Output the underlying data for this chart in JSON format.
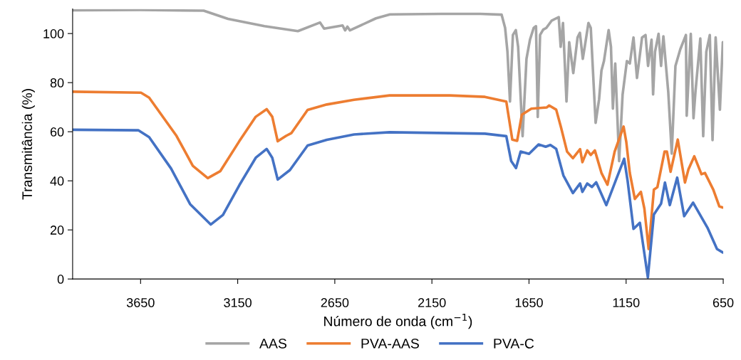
{
  "chart_data": {
    "type": "line",
    "xlabel": "Número de onda (cm$^{−1}$)",
    "ylabel": "Transmitância (%)",
    "xlim": [
      4000,
      650
    ],
    "xticks": [
      3650,
      3150,
      2650,
      2150,
      1650,
      1150,
      650
    ],
    "ylim": [
      0,
      110
    ],
    "yticks": [
      0,
      20,
      40,
      60,
      80,
      100
    ],
    "grid": false,
    "legend": "bottom",
    "marker": "none",
    "line_style": "solid",
    "series": [
      {
        "name": "AAS",
        "color": "#a5a5a5",
        "x": [
          4000,
          3650,
          3325,
          3200,
          3012,
          2840,
          2726,
          2705,
          2610,
          2597,
          2585,
          2572,
          2438,
          2366,
          2100,
          1900,
          1791,
          1773,
          1761,
          1748,
          1733,
          1718,
          1706,
          1683,
          1663,
          1645,
          1626,
          1614,
          1605,
          1593,
          1577,
          1561,
          1534,
          1510,
          1497,
          1487,
          1475,
          1457,
          1443,
          1422,
          1400,
          1388,
          1373,
          1363,
          1344,
          1332,
          1307,
          1289,
          1277,
          1264,
          1240,
          1228,
          1218,
          1206,
          1186,
          1168,
          1146,
          1131,
          1112,
          1094,
          1068,
          1050,
          1037,
          1019,
          1011,
          1001,
          983,
          970,
          958,
          933,
          915,
          896,
          871,
          842,
          838,
          817,
          803,
          793,
          768,
          753,
          737,
          719,
          705,
          689,
          667,
          652
        ],
        "values": [
          109.5,
          109.6,
          109.3,
          106,
          103,
          101,
          104.5,
          102,
          103.3,
          101.3,
          102.8,
          101.3,
          106.2,
          107.8,
          108,
          108,
          107.7,
          102.3,
          92.6,
          72.3,
          99.4,
          101.4,
          94.6,
          58.2,
          89.7,
          97.5,
          102.3,
          103,
          66,
          99.4,
          101.6,
          102.3,
          105.2,
          106.2,
          106.7,
          94.6,
          104.3,
          72.3,
          96.5,
          83.9,
          98.4,
          100.3,
          89.7,
          94.6,
          104.3,
          102.3,
          63.6,
          73.3,
          84.9,
          88.8,
          101.4,
          94.6,
          69.4,
          87.8,
          48,
          75.2,
          88.8,
          87.8,
          98.4,
          81.9,
          98.4,
          99.4,
          86.8,
          97.5,
          75.2,
          92.6,
          99.9,
          86.8,
          98.9,
          76.2,
          51.1,
          86.8,
          93.6,
          99.4,
          66.5,
          99.9,
          65.5,
          76.2,
          98,
          58.2,
          92.6,
          99.4,
          56.6,
          98.4,
          69,
          96.5
        ]
      },
      {
        "name": "PVA-AAS",
        "color": "#ed7d31",
        "x": [
          4000,
          3648,
          3606,
          3465,
          3381,
          3304,
          3240,
          3142,
          3057,
          3001,
          2972,
          2944,
          2901,
          2874,
          2790,
          2691,
          2551,
          2368,
          2058,
          1877,
          1767,
          1736,
          1711,
          1687,
          1638,
          1558,
          1546,
          1510,
          1485,
          1454,
          1424,
          1387,
          1375,
          1350,
          1332,
          1311,
          1277,
          1246,
          1209,
          1163,
          1149,
          1131,
          1105,
          1074,
          1056,
          1034,
          1007,
          989,
          952,
          940,
          921,
          884,
          847,
          829,
          799,
          762,
          744,
          701,
          670,
          652
        ],
        "values": [
          76.3,
          75.9,
          73.9,
          58.3,
          46.1,
          41.1,
          43.9,
          56.1,
          66.1,
          69.2,
          66.1,
          56.1,
          58.3,
          59.4,
          68.9,
          71.1,
          73,
          74.8,
          74.8,
          74.2,
          72.3,
          56.8,
          56.3,
          66.9,
          69.4,
          69.9,
          70.7,
          69,
          61.7,
          51.9,
          49.2,
          52.9,
          47.6,
          52.4,
          50.5,
          52.4,
          43.2,
          38.4,
          51.9,
          62.1,
          55.8,
          43.2,
          32.6,
          35.5,
          28.7,
          12.2,
          36.4,
          37.4,
          51.9,
          51.9,
          43.7,
          56.8,
          39.3,
          44.7,
          50,
          42.7,
          43.2,
          36.4,
          29.6,
          29.1
        ]
      },
      {
        "name": "PVA-C",
        "color": "#4472c4",
        "x": [
          4000,
          3662,
          3606,
          3493,
          3395,
          3289,
          3226,
          3141,
          3057,
          3001,
          2972,
          2944,
          2881,
          2790,
          2691,
          2551,
          2368,
          1877,
          1767,
          1742,
          1717,
          1693,
          1650,
          1601,
          1564,
          1540,
          1510,
          1473,
          1424,
          1387,
          1375,
          1350,
          1326,
          1304,
          1252,
          1203,
          1160,
          1142,
          1112,
          1079,
          1038,
          1007,
          970,
          950,
          925,
          887,
          851,
          805,
          731,
          682,
          652
        ],
        "values": [
          60.8,
          60.6,
          57.8,
          45,
          30.5,
          22.2,
          26.1,
          38.3,
          49.4,
          53,
          49.4,
          40.5,
          44.4,
          54.4,
          56.7,
          58.9,
          59.8,
          59.2,
          58.2,
          48.1,
          45.2,
          51.9,
          51,
          54.8,
          53.9,
          54.6,
          53,
          42.2,
          35,
          38.9,
          35.5,
          38.9,
          37.5,
          39.4,
          30.1,
          40.2,
          49,
          39.8,
          20.4,
          22.9,
          0.6,
          26.3,
          30.7,
          39.3,
          30.1,
          41.3,
          25.6,
          31.1,
          20.9,
          12.2,
          10.8
        ]
      }
    ]
  }
}
